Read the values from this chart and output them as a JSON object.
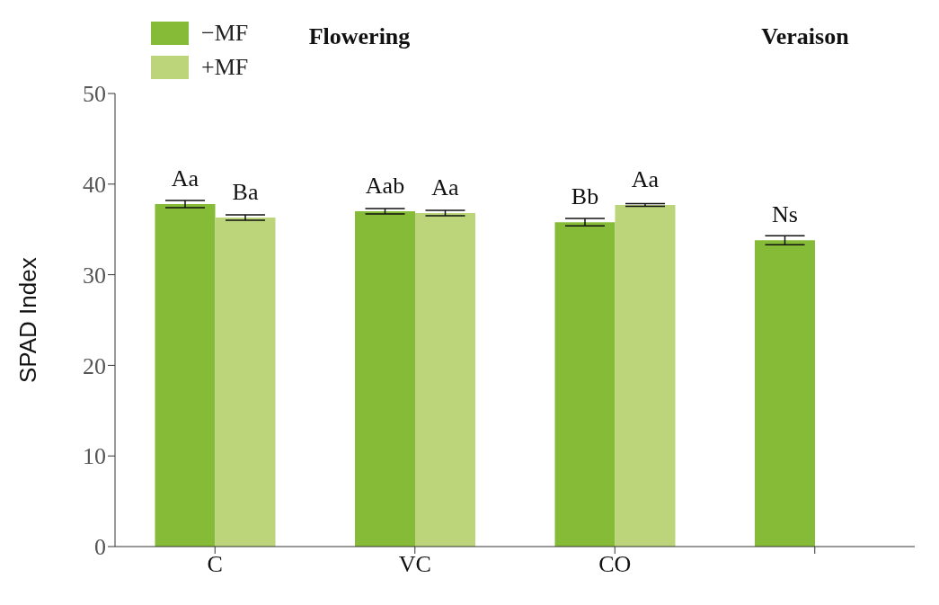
{
  "chart_data": {
    "type": "bar",
    "ylabel": "SPAD Index",
    "categories": [
      "C",
      "VC",
      "CO",
      null
    ],
    "series": [
      {
        "name": "−MF",
        "color": "#86bb37",
        "values": [
          37.8,
          37.0,
          35.8,
          33.8
        ],
        "errors": [
          0.4,
          0.3,
          0.4,
          0.5
        ],
        "value_labels": [
          "Aa",
          "Aab",
          "Bb",
          "Ns"
        ]
      },
      {
        "name": "+MF",
        "color": "#bcd57a",
        "values": [
          36.3,
          36.8,
          37.7,
          null
        ],
        "errors": [
          0.3,
          0.3,
          0.15,
          null
        ],
        "value_labels": [
          "Ba",
          "Aa",
          "Aa",
          null
        ]
      }
    ],
    "annotations": [
      "Flowering",
      "Veraison"
    ],
    "ylim": [
      0,
      50
    ],
    "yticks": [
      0,
      10,
      20,
      30,
      40,
      50
    ],
    "grid": false,
    "legend": "top"
  }
}
